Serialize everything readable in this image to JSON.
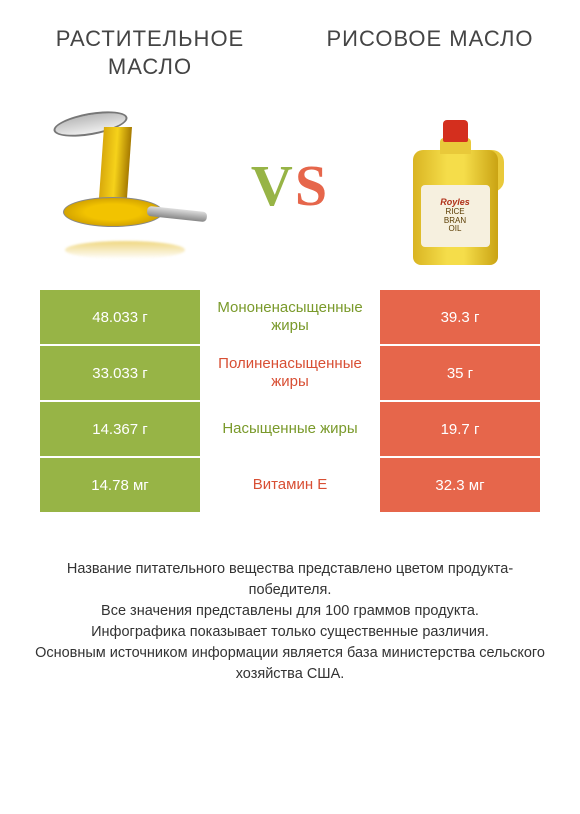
{
  "titles": {
    "left": "РАСТИТЕЛЬНОЕ МАСЛО",
    "right": "РИСОВОЕ МАСЛО"
  },
  "vs": {
    "v": "V",
    "s": "S"
  },
  "bottle_label": {
    "brand": "Royles",
    "line1": "RICE",
    "line2": "BRAN",
    "line3": "OIL"
  },
  "colors": {
    "green": "#97b446",
    "orange": "#e6664b",
    "green_text": "#7a9a2b",
    "orange_text": "#d84f34",
    "background": "#ffffff"
  },
  "rows": [
    {
      "left_value": "48.033 г",
      "label": "Мононенасыщенные жиры",
      "right_value": "39.3 г",
      "winner": "left"
    },
    {
      "left_value": "33.033 г",
      "label": "Полиненасыщенные жиры",
      "right_value": "35 г",
      "winner": "right"
    },
    {
      "left_value": "14.367 г",
      "label": "Насыщенные жиры",
      "right_value": "19.7 г",
      "winner": "left"
    },
    {
      "left_value": "14.78 мг",
      "label": "Витамин E",
      "right_value": "32.3 мг",
      "winner": "right"
    }
  ],
  "footnotes": [
    "Название питательного вещества представлено цветом продукта-победителя.",
    "Все значения представлены для 100 граммов продукта.",
    "Инфографика показывает только существенные различия.",
    "Основным источником информации является база министерства сельского хозяйства США."
  ]
}
